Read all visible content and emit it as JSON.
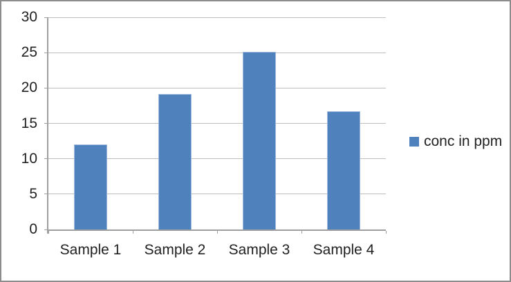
{
  "chart_data": {
    "type": "bar",
    "title": "",
    "categories": [
      "Sample 1",
      "Sample 2",
      "Sample 3",
      "Sample 4"
    ],
    "series": [
      {
        "name": "conc in ppm",
        "values": [
          12,
          19.2,
          25.1,
          16.7
        ]
      }
    ],
    "xlabel": "",
    "ylabel": "",
    "ylim": [
      0,
      30
    ],
    "ytick_interval": 5,
    "ytick_labels": [
      "0",
      "5",
      "10",
      "15",
      "20",
      "25",
      "30"
    ],
    "grid": true,
    "legend_position": "right"
  },
  "legend": {
    "swatch_icon": "square",
    "label": "conc in ppm"
  },
  "colors": {
    "bar_fill": "#4F81BD",
    "bar_border": "#9DB9DC",
    "gridline": "#BDBDBD",
    "axis": "#9E9E9E",
    "frame_border": "#8C8C8C",
    "text": "#212121",
    "background": "#FFFFFF"
  }
}
